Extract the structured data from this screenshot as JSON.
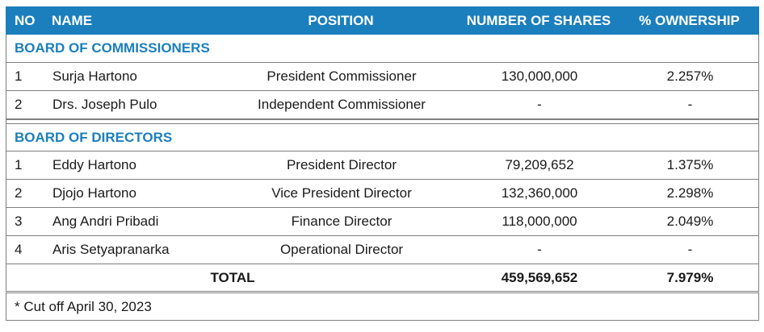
{
  "header": {
    "no": "NO",
    "name": "NAME",
    "position": "POSITION",
    "shares": "NUMBER OF SHARES",
    "ownership": "% OWNERSHIP"
  },
  "commissioners": {
    "title": "BOARD OF COMMISSIONERS",
    "rows": [
      {
        "no": "1",
        "name": "Surja Hartono",
        "position": "President Commissioner",
        "shares": "130,000,000",
        "ownership": "2.257%"
      },
      {
        "no": "2",
        "name": "Drs. Joseph Pulo",
        "position": "Independent Commissioner",
        "shares": "-",
        "ownership": "-"
      }
    ]
  },
  "directors": {
    "title": "BOARD OF DIRECTORS",
    "rows": [
      {
        "no": "1",
        "name": "Eddy Hartono",
        "position": "President Director",
        "shares": "79,209,652",
        "ownership": "1.375%"
      },
      {
        "no": "2",
        "name": "Djojo Hartono",
        "position": "Vice President Director",
        "shares": "132,360,000",
        "ownership": "2.298%"
      },
      {
        "no": "3",
        "name": "Ang Andri Pribadi",
        "position": "Finance Director",
        "shares": "118,000,000",
        "ownership": "2.049%"
      },
      {
        "no": "4",
        "name": "Aris Setyapranarka",
        "position": "Operational Director",
        "shares": "-",
        "ownership": "-"
      }
    ]
  },
  "total": {
    "label": "TOTAL",
    "shares": "459,569,652",
    "ownership": "7.979%"
  },
  "footnote": "* Cut off April 30, 2023",
  "colors": {
    "header_bg": "#1b7fbd",
    "section_title": "#1b7fbd"
  }
}
